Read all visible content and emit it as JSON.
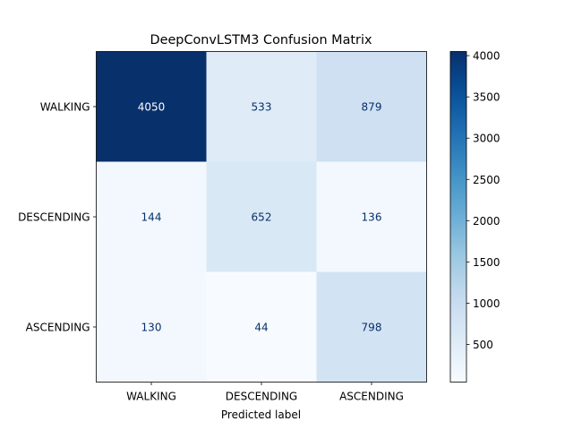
{
  "chart_data": {
    "type": "heatmap",
    "title": "DeepConvLSTM3 Confusion Matrix",
    "xlabel": "Predicted label",
    "ylabel": "",
    "x_categories": [
      "WALKING",
      "DESCENDING",
      "ASCENDING"
    ],
    "y_categories": [
      "WALKING",
      "DESCENDING",
      "ASCENDING"
    ],
    "values": [
      [
        4050,
        533,
        879
      ],
      [
        144,
        652,
        136
      ],
      [
        130,
        44,
        798
      ]
    ],
    "colormap": "Blues",
    "color_range": [
      44,
      4050
    ],
    "colorbar_ticks": [
      500,
      1000,
      1500,
      2000,
      2500,
      3000,
      3500,
      4000
    ],
    "colorbar_tick_labels": [
      "500",
      "1000",
      "1500",
      "2000",
      "2500",
      "3000",
      "3500",
      "4000"
    ],
    "text_color_light": "#ffffff",
    "text_color_dark": "#08306b"
  }
}
